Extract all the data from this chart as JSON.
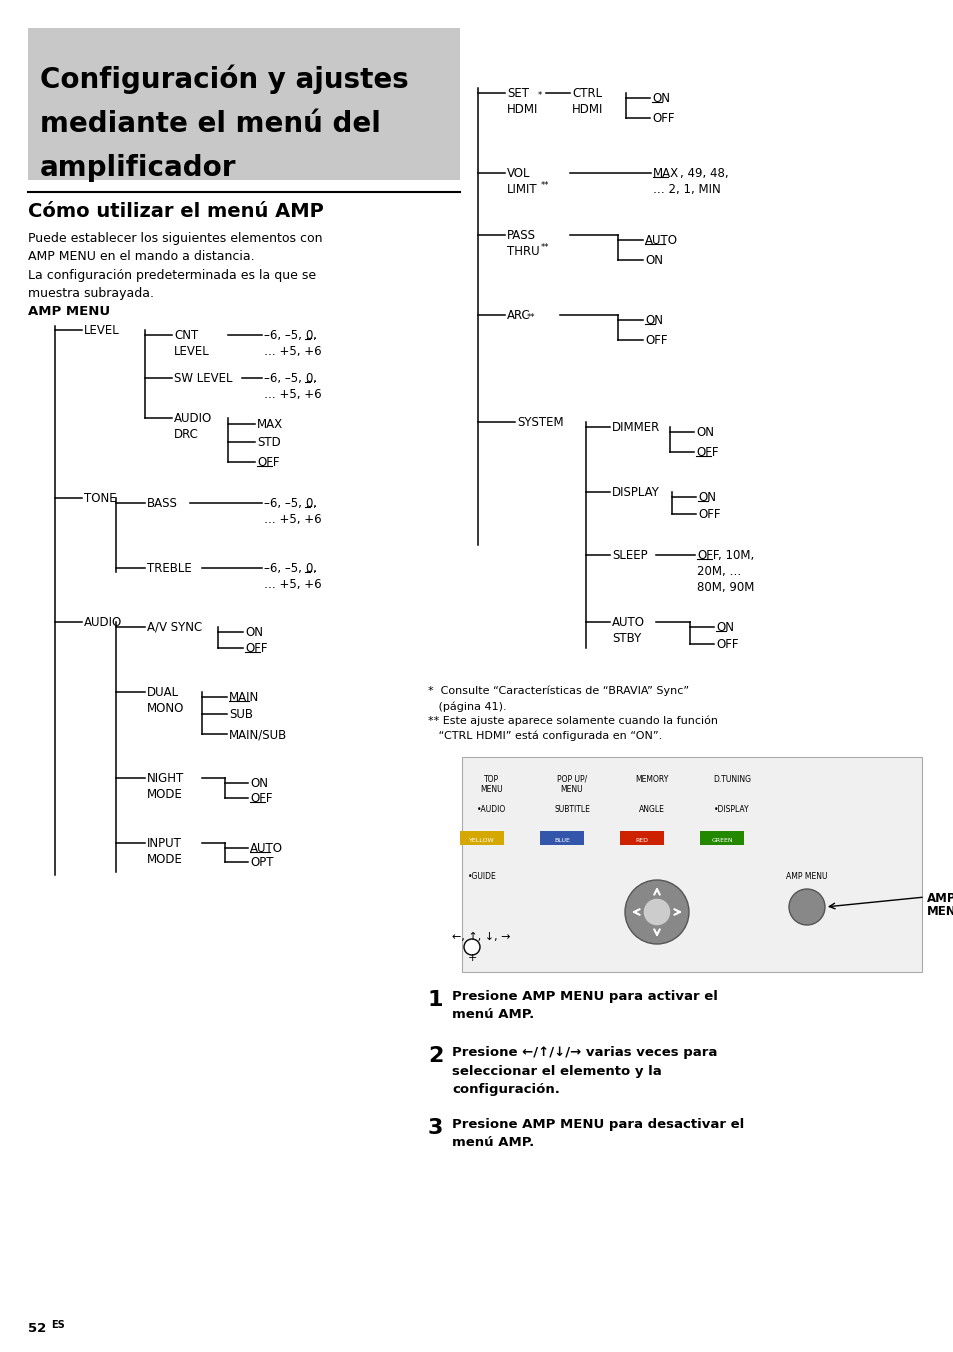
{
  "title_line1": "Configuración y ajustes",
  "title_line2": "mediante el menú del",
  "title_line3": "amplificador",
  "subtitle": "Cómo utilizar el menú AMP",
  "body_text": "Puede establecer los siguientes elementos con\nAMP MENU en el mando a distancia.\nLa configuración predeterminada es la que se\nmuestra subrayada.",
  "amp_menu_label": "AMP MENU",
  "footnote1": "*  Consulte “Características de “BRAVIA” Sync”\n   (página 41).",
  "footnote2": "** Este ajuste aparece solamente cuando la función\n   “CTRL HDMI” está configurada en “ON”.",
  "step1_bold": "Presione AMP MENU para activar el\nmenú AMP.",
  "step2_bold": "Presione ←/↑/↓/→ varias veces para\nseleccionar el elemento y la\nconfiguración.",
  "step3_bold": "Presione AMP MENU para desactivar el\nmenú AMP.",
  "page_num": "52",
  "page_sup": "ES",
  "bg_color": "#ffffff",
  "title_bg": "#c8c8c8",
  "text_color": "#000000"
}
